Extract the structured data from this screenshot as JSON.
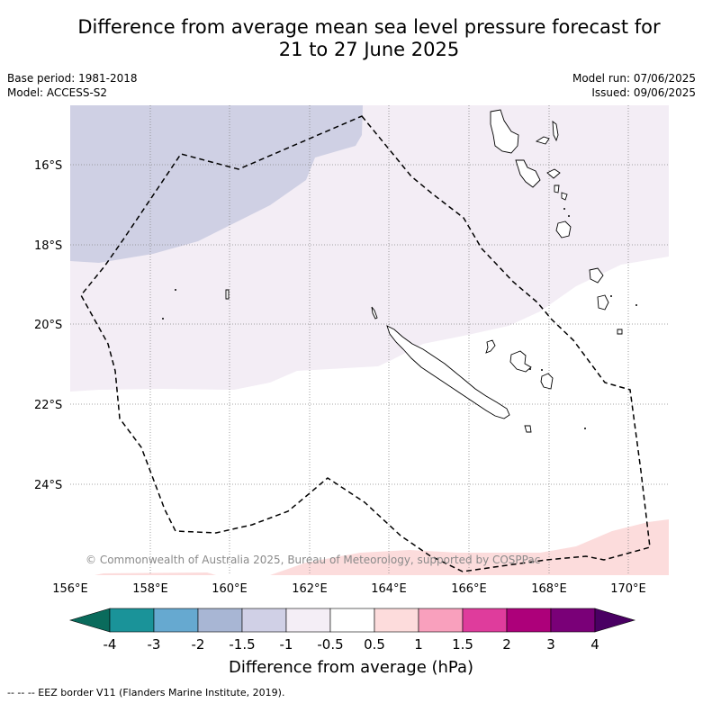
{
  "title": {
    "line1": "Difference from average mean sea level pressure forecast for",
    "line2": "21 to 27 June 2025"
  },
  "meta": {
    "base_period": "Base period: 1981-2018",
    "model": "Model: ACCESS-S2",
    "model_run": "Model run: 07/06/2025",
    "issued": "Issued: 09/06/2025"
  },
  "map": {
    "lat_labels": [
      "16°S",
      "18°S",
      "20°S",
      "22°S",
      "24°S"
    ],
    "lon_labels": [
      "156°E",
      "158°E",
      "160°E",
      "162°E",
      "164°E",
      "166°E",
      "168°E",
      "170°E"
    ],
    "attribution": "© Commonwealth of Australia 2025, Bureau of Meteorology, supported by COSPPac",
    "region_colors": {
      "minus_1_5_to_minus_1": "#cfd0e4",
      "minus_1_to_minus_0_5": "#f3edf5",
      "minus_0_5_to_0_5": "#ffffff",
      "plus_0_5_to_1": "#fcdcdc"
    },
    "eez_style": "dashed-black",
    "land_style": "outline-black"
  },
  "colorbar": {
    "title": "Difference from average (hPa)",
    "tick_labels": [
      "-4",
      "-3",
      "-2",
      "-1.5",
      "-1",
      "-0.5",
      "0.5",
      "1",
      "1.5",
      "2",
      "3",
      "4"
    ],
    "colors": [
      "#0a6b5c",
      "#1a9399",
      "#66a9d0",
      "#a8b6d4",
      "#d0d0e6",
      "#f4eef6",
      "#ffffff",
      "#fddcdc",
      "#f9a0bd",
      "#df3c9c",
      "#ad007a",
      "#7a0078",
      "#4a0063"
    ]
  },
  "footnote": "--  --  -- EEZ border V11 (Flanders Marine Institute, 2019)."
}
